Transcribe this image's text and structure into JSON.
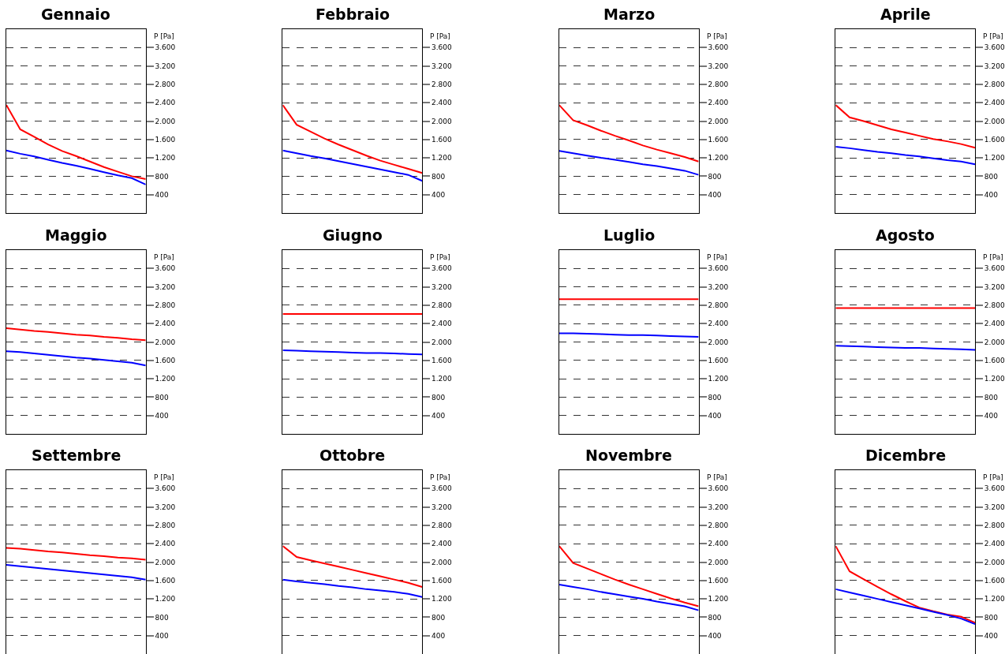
{
  "chart_data": [
    {
      "type": "line",
      "title": "Gennaio",
      "ylabel": "P [Pa]",
      "categories": [
        null,
        null,
        null,
        null,
        null,
        null,
        null,
        null,
        null,
        null,
        null
      ],
      "ylim": [
        0,
        4000
      ],
      "yticks": [
        {
          "value": 400,
          "label": "400"
        },
        {
          "value": 800,
          "label": "800"
        },
        {
          "value": 1200,
          "label": "1.200"
        },
        {
          "value": 1600,
          "label": "1.600"
        },
        {
          "value": 2000,
          "label": "2.000"
        },
        {
          "value": 2400,
          "label": "2.400"
        },
        {
          "value": 2800,
          "label": "2.800"
        },
        {
          "value": 3200,
          "label": "3.200"
        },
        {
          "value": 3600,
          "label": "3.600"
        }
      ],
      "grid": "y",
      "line_style": "solid",
      "series": [
        {
          "color": "#ff0000",
          "values": [
            2350,
            1820,
            1660,
            1490,
            1350,
            1240,
            1120,
            1000,
            900,
            800,
            740
          ]
        },
        {
          "color": "#0000ff",
          "values": [
            1360,
            1290,
            1230,
            1160,
            1090,
            1030,
            960,
            890,
            820,
            760,
            620
          ]
        }
      ]
    },
    {
      "type": "line",
      "title": "Febbraio",
      "ylabel": "P [Pa]",
      "categories": [
        null,
        null,
        null,
        null,
        null,
        null,
        null,
        null,
        null,
        null,
        null
      ],
      "ylim": [
        0,
        4000
      ],
      "yticks": [
        {
          "value": 400,
          "label": "400"
        },
        {
          "value": 800,
          "label": "800"
        },
        {
          "value": 1200,
          "label": "1.200"
        },
        {
          "value": 1600,
          "label": "1.600"
        },
        {
          "value": 2000,
          "label": "2.000"
        },
        {
          "value": 2400,
          "label": "2.400"
        },
        {
          "value": 2800,
          "label": "2.800"
        },
        {
          "value": 3200,
          "label": "3.200"
        },
        {
          "value": 3600,
          "label": "3.600"
        }
      ],
      "grid": "y",
      "line_style": "solid",
      "series": [
        {
          "color": "#ff0000",
          "values": [
            2350,
            1920,
            1770,
            1620,
            1490,
            1370,
            1250,
            1140,
            1050,
            960,
            870
          ]
        },
        {
          "color": "#0000ff",
          "values": [
            1360,
            1300,
            1240,
            1190,
            1130,
            1070,
            1010,
            950,
            890,
            830,
            700
          ]
        }
      ]
    },
    {
      "type": "line",
      "title": "Marzo",
      "ylabel": "P [Pa]",
      "categories": [
        null,
        null,
        null,
        null,
        null,
        null,
        null,
        null,
        null,
        null,
        null
      ],
      "ylim": [
        0,
        4000
      ],
      "yticks": [
        {
          "value": 400,
          "label": "400"
        },
        {
          "value": 800,
          "label": "800"
        },
        {
          "value": 1200,
          "label": "1.200"
        },
        {
          "value": 1600,
          "label": "1.600"
        },
        {
          "value": 2000,
          "label": "2.000"
        },
        {
          "value": 2400,
          "label": "2.400"
        },
        {
          "value": 2800,
          "label": "2.800"
        },
        {
          "value": 3200,
          "label": "3.200"
        },
        {
          "value": 3600,
          "label": "3.600"
        }
      ],
      "grid": "y",
      "line_style": "solid",
      "series": [
        {
          "color": "#ff0000",
          "values": [
            2350,
            2020,
            1910,
            1790,
            1680,
            1580,
            1470,
            1380,
            1300,
            1220,
            1120
          ]
        },
        {
          "color": "#0000ff",
          "values": [
            1350,
            1300,
            1250,
            1200,
            1160,
            1110,
            1060,
            1020,
            970,
            920,
            830
          ]
        }
      ]
    },
    {
      "type": "line",
      "title": "Aprile",
      "ylabel": "P [Pa]",
      "categories": [
        null,
        null,
        null,
        null,
        null,
        null,
        null,
        null,
        null,
        null,
        null
      ],
      "ylim": [
        0,
        4000
      ],
      "yticks": [
        {
          "value": 400,
          "label": "400"
        },
        {
          "value": 800,
          "label": "800"
        },
        {
          "value": 1200,
          "label": "1.200"
        },
        {
          "value": 1600,
          "label": "1.600"
        },
        {
          "value": 2000,
          "label": "2.000"
        },
        {
          "value": 2400,
          "label": "2.400"
        },
        {
          "value": 2800,
          "label": "2.800"
        },
        {
          "value": 3200,
          "label": "3.200"
        },
        {
          "value": 3600,
          "label": "3.600"
        }
      ],
      "grid": "y",
      "line_style": "solid",
      "series": [
        {
          "color": "#ff0000",
          "values": [
            2350,
            2080,
            2000,
            1910,
            1820,
            1750,
            1680,
            1610,
            1560,
            1500,
            1420
          ]
        },
        {
          "color": "#0000ff",
          "values": [
            1440,
            1410,
            1370,
            1330,
            1300,
            1260,
            1230,
            1190,
            1150,
            1120,
            1060
          ]
        }
      ]
    },
    {
      "type": "line",
      "title": "Maggio",
      "ylabel": "P [Pa]",
      "categories": [
        null,
        null,
        null,
        null,
        null,
        null,
        null,
        null,
        null,
        null,
        null
      ],
      "ylim": [
        0,
        4000
      ],
      "yticks": [
        {
          "value": 400,
          "label": "400"
        },
        {
          "value": 800,
          "label": "800"
        },
        {
          "value": 1200,
          "label": "1.200"
        },
        {
          "value": 1600,
          "label": "1.600"
        },
        {
          "value": 2000,
          "label": "2.000"
        },
        {
          "value": 2400,
          "label": "2.400"
        },
        {
          "value": 2800,
          "label": "2.800"
        },
        {
          "value": 3200,
          "label": "3.200"
        },
        {
          "value": 3600,
          "label": "3.600"
        }
      ],
      "grid": "y",
      "line_style": "solid",
      "series": [
        {
          "color": "#ff0000",
          "values": [
            2300,
            2270,
            2240,
            2220,
            2190,
            2160,
            2140,
            2110,
            2090,
            2060,
            2040
          ]
        },
        {
          "color": "#0000ff",
          "values": [
            1800,
            1780,
            1750,
            1720,
            1690,
            1660,
            1640,
            1610,
            1580,
            1550,
            1490
          ]
        }
      ]
    },
    {
      "type": "line",
      "title": "Giugno",
      "ylabel": "P [Pa]",
      "categories": [
        null,
        null,
        null,
        null,
        null,
        null,
        null,
        null,
        null,
        null,
        null
      ],
      "ylim": [
        0,
        4000
      ],
      "yticks": [
        {
          "value": 400,
          "label": "400"
        },
        {
          "value": 800,
          "label": "800"
        },
        {
          "value": 1200,
          "label": "1.200"
        },
        {
          "value": 1600,
          "label": "1.600"
        },
        {
          "value": 2000,
          "label": "2.000"
        },
        {
          "value": 2400,
          "label": "2.400"
        },
        {
          "value": 2800,
          "label": "2.800"
        },
        {
          "value": 3200,
          "label": "3.200"
        },
        {
          "value": 3600,
          "label": "3.600"
        }
      ],
      "grid": "y",
      "line_style": "solid",
      "series": [
        {
          "color": "#ff0000",
          "values": [
            2610,
            2610,
            2610,
            2610,
            2610,
            2610,
            2610,
            2610,
            2610,
            2610,
            2610
          ]
        },
        {
          "color": "#0000ff",
          "values": [
            1820,
            1810,
            1800,
            1790,
            1780,
            1770,
            1760,
            1760,
            1750,
            1740,
            1730
          ]
        }
      ]
    },
    {
      "type": "line",
      "title": "Luglio",
      "ylabel": "P [Pa]",
      "categories": [
        null,
        null,
        null,
        null,
        null,
        null,
        null,
        null,
        null,
        null,
        null
      ],
      "ylim": [
        0,
        4000
      ],
      "yticks": [
        {
          "value": 400,
          "label": "400"
        },
        {
          "value": 800,
          "label": "800"
        },
        {
          "value": 1200,
          "label": "1.200"
        },
        {
          "value": 1600,
          "label": "1.600"
        },
        {
          "value": 2000,
          "label": "2.000"
        },
        {
          "value": 2400,
          "label": "2.400"
        },
        {
          "value": 2800,
          "label": "2.800"
        },
        {
          "value": 3200,
          "label": "3.200"
        },
        {
          "value": 3600,
          "label": "3.600"
        }
      ],
      "grid": "y",
      "line_style": "solid",
      "series": [
        {
          "color": "#ff0000",
          "values": [
            2930,
            2930,
            2930,
            2930,
            2930,
            2930,
            2930,
            2930,
            2930,
            2930,
            2930
          ]
        },
        {
          "color": "#0000ff",
          "values": [
            2190,
            2190,
            2180,
            2170,
            2160,
            2150,
            2150,
            2140,
            2130,
            2120,
            2110
          ]
        }
      ]
    },
    {
      "type": "line",
      "title": "Agosto",
      "ylabel": "P [Pa]",
      "categories": [
        null,
        null,
        null,
        null,
        null,
        null,
        null,
        null,
        null,
        null,
        null
      ],
      "ylim": [
        0,
        4000
      ],
      "yticks": [
        {
          "value": 400,
          "label": "400"
        },
        {
          "value": 800,
          "label": "800"
        },
        {
          "value": 1200,
          "label": "1.200"
        },
        {
          "value": 1600,
          "label": "1.600"
        },
        {
          "value": 2000,
          "label": "2.000"
        },
        {
          "value": 2400,
          "label": "2.400"
        },
        {
          "value": 2800,
          "label": "2.800"
        },
        {
          "value": 3200,
          "label": "3.200"
        },
        {
          "value": 3600,
          "label": "3.600"
        }
      ],
      "grid": "y",
      "line_style": "solid",
      "series": [
        {
          "color": "#ff0000",
          "values": [
            2740,
            2740,
            2740,
            2740,
            2740,
            2740,
            2740,
            2740,
            2740,
            2740,
            2740
          ]
        },
        {
          "color": "#0000ff",
          "values": [
            1920,
            1910,
            1900,
            1890,
            1880,
            1870,
            1870,
            1860,
            1850,
            1840,
            1830
          ]
        }
      ]
    },
    {
      "type": "line",
      "title": "Settembre",
      "ylabel": "P [Pa]",
      "categories": [
        null,
        null,
        null,
        null,
        null,
        null,
        null,
        null,
        null,
        null,
        null
      ],
      "ylim": [
        0,
        4000
      ],
      "yticks": [
        {
          "value": 400,
          "label": "400"
        },
        {
          "value": 800,
          "label": "800"
        },
        {
          "value": 1200,
          "label": "1.200"
        },
        {
          "value": 1600,
          "label": "1.600"
        },
        {
          "value": 2000,
          "label": "2.000"
        },
        {
          "value": 2400,
          "label": "2.400"
        },
        {
          "value": 2800,
          "label": "2.800"
        },
        {
          "value": 3200,
          "label": "3.200"
        },
        {
          "value": 3600,
          "label": "3.600"
        }
      ],
      "grid": "y",
      "line_style": "solid",
      "series": [
        {
          "color": "#ff0000",
          "values": [
            2310,
            2290,
            2260,
            2230,
            2210,
            2180,
            2150,
            2130,
            2100,
            2080,
            2050
          ]
        },
        {
          "color": "#0000ff",
          "values": [
            1940,
            1910,
            1880,
            1850,
            1820,
            1790,
            1760,
            1730,
            1700,
            1670,
            1620
          ]
        }
      ]
    },
    {
      "type": "line",
      "title": "Ottobre",
      "ylabel": "P [Pa]",
      "categories": [
        null,
        null,
        null,
        null,
        null,
        null,
        null,
        null,
        null,
        null,
        null
      ],
      "ylim": [
        0,
        4000
      ],
      "yticks": [
        {
          "value": 400,
          "label": "400"
        },
        {
          "value": 800,
          "label": "800"
        },
        {
          "value": 1200,
          "label": "1.200"
        },
        {
          "value": 1600,
          "label": "1.600"
        },
        {
          "value": 2000,
          "label": "2.000"
        },
        {
          "value": 2400,
          "label": "2.400"
        },
        {
          "value": 2800,
          "label": "2.800"
        },
        {
          "value": 3200,
          "label": "3.200"
        },
        {
          "value": 3600,
          "label": "3.600"
        }
      ],
      "grid": "y",
      "line_style": "solid",
      "series": [
        {
          "color": "#ff0000",
          "values": [
            2350,
            2110,
            2040,
            1970,
            1900,
            1830,
            1760,
            1690,
            1620,
            1550,
            1460
          ]
        },
        {
          "color": "#0000ff",
          "values": [
            1620,
            1580,
            1550,
            1520,
            1480,
            1450,
            1410,
            1380,
            1350,
            1310,
            1240
          ]
        }
      ]
    },
    {
      "type": "line",
      "title": "Novembre",
      "ylabel": "P [Pa]",
      "categories": [
        null,
        null,
        null,
        null,
        null,
        null,
        null,
        null,
        null,
        null,
        null
      ],
      "ylim": [
        0,
        4000
      ],
      "yticks": [
        {
          "value": 400,
          "label": "400"
        },
        {
          "value": 800,
          "label": "800"
        },
        {
          "value": 1200,
          "label": "1.200"
        },
        {
          "value": 1600,
          "label": "1.600"
        },
        {
          "value": 2000,
          "label": "2.000"
        },
        {
          "value": 2400,
          "label": "2.400"
        },
        {
          "value": 2800,
          "label": "2.800"
        },
        {
          "value": 3200,
          "label": "3.200"
        },
        {
          "value": 3600,
          "label": "3.600"
        }
      ],
      "grid": "y",
      "line_style": "solid",
      "series": [
        {
          "color": "#ff0000",
          "values": [
            2350,
            1980,
            1860,
            1740,
            1620,
            1510,
            1410,
            1310,
            1210,
            1120,
            1040
          ]
        },
        {
          "color": "#0000ff",
          "values": [
            1510,
            1460,
            1410,
            1350,
            1300,
            1250,
            1200,
            1140,
            1090,
            1040,
            950
          ]
        }
      ]
    },
    {
      "type": "line",
      "title": "Dicembre",
      "ylabel": "P [Pa]",
      "categories": [
        null,
        null,
        null,
        null,
        null,
        null,
        null,
        null,
        null,
        null,
        null
      ],
      "ylim": [
        0,
        4000
      ],
      "yticks": [
        {
          "value": 400,
          "label": "400"
        },
        {
          "value": 800,
          "label": "800"
        },
        {
          "value": 1200,
          "label": "1.200"
        },
        {
          "value": 1600,
          "label": "1.600"
        },
        {
          "value": 2000,
          "label": "2.000"
        },
        {
          "value": 2400,
          "label": "2.400"
        },
        {
          "value": 2800,
          "label": "2.800"
        },
        {
          "value": 3200,
          "label": "3.200"
        },
        {
          "value": 3600,
          "label": "3.600"
        }
      ],
      "grid": "y",
      "line_style": "solid",
      "series": [
        {
          "color": "#ff0000",
          "values": [
            2350,
            1800,
            1630,
            1460,
            1300,
            1150,
            1010,
            930,
            860,
            810,
            680
          ]
        },
        {
          "color": "#0000ff",
          "values": [
            1410,
            1340,
            1270,
            1200,
            1130,
            1060,
            990,
            920,
            850,
            770,
            650
          ]
        }
      ]
    }
  ]
}
